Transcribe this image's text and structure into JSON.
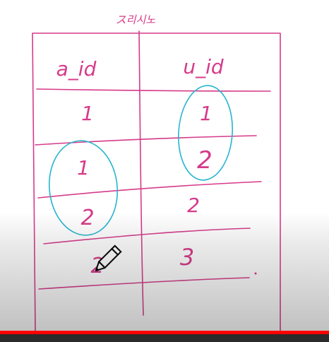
{
  "board": {
    "title": "ス리시노",
    "headers": [
      "a_id",
      "u_id"
    ],
    "rows": [
      [
        "1",
        "1"
      ],
      [
        "1",
        "2"
      ],
      [
        "2",
        "2"
      ],
      [
        "2",
        "3"
      ]
    ]
  },
  "colors": {
    "ink": "#d63a8a",
    "circle": "#27b5cf",
    "progress": "#ff0000"
  },
  "player": {
    "progress_fraction": 1.0
  },
  "icons": {
    "cursor": "pencil-cursor-icon"
  }
}
